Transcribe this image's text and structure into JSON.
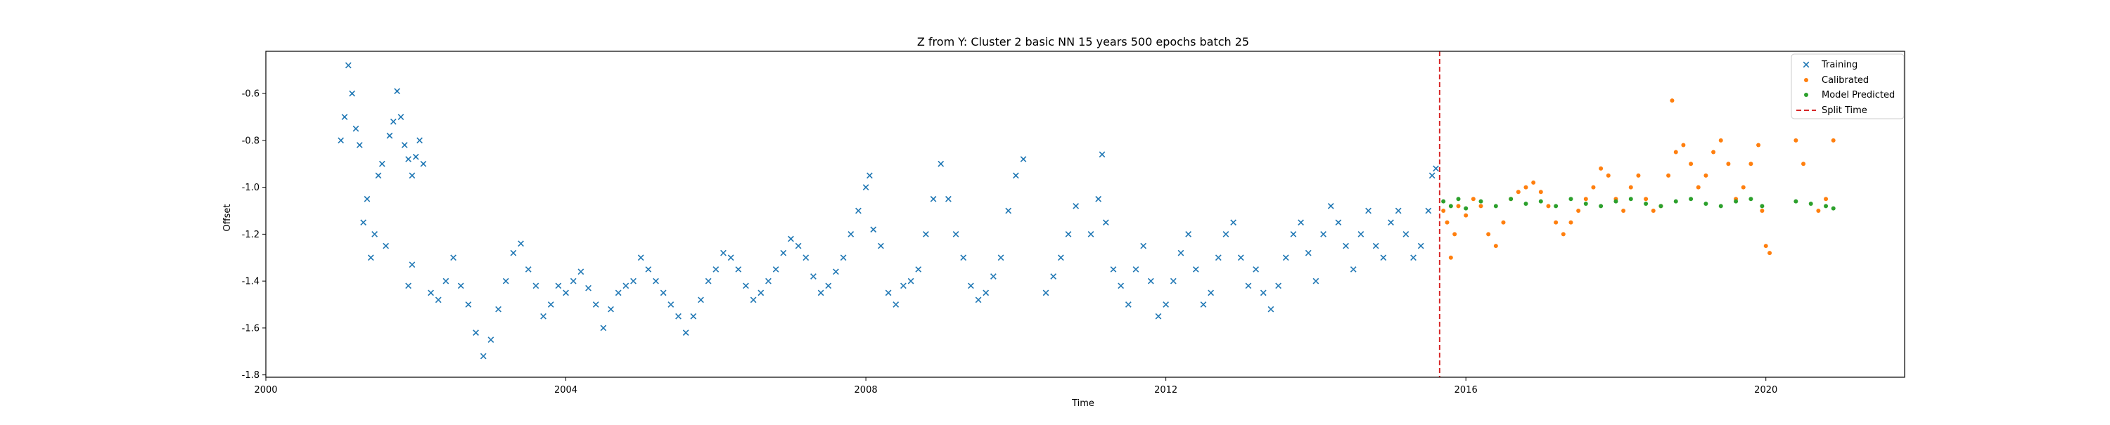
{
  "chart_data": {
    "type": "scatter",
    "title": "Z from Y: Cluster 2 basic NN 15 years 500 epochs batch 25",
    "xlabel": "Time",
    "ylabel": "Offset",
    "xlim": [
      2000.0,
      2021.85
    ],
    "ylim": [
      -1.81,
      -0.42
    ],
    "x_ticks": [
      2000,
      2004,
      2008,
      2012,
      2016,
      2020
    ],
    "x_tick_labels": [
      "2000",
      "2004",
      "2008",
      "2012",
      "2016",
      "2020"
    ],
    "y_ticks": [
      -1.8,
      -1.6,
      -1.4,
      -1.2,
      -1.0,
      -0.8,
      -0.6
    ],
    "y_tick_labels": [
      "-1.8",
      "-1.6",
      "-1.4",
      "-1.2",
      "-1.0",
      "-0.8",
      "-0.6"
    ],
    "grid": false,
    "legend_position": "top-right",
    "split_time": 2015.65,
    "series": [
      {
        "name": "Training",
        "marker": "x",
        "color": "#1f77b4",
        "points": [
          [
            2001.0,
            -0.8
          ],
          [
            2001.05,
            -0.7
          ],
          [
            2001.1,
            -0.48
          ],
          [
            2001.15,
            -0.6
          ],
          [
            2001.2,
            -0.75
          ],
          [
            2001.25,
            -0.82
          ],
          [
            2001.3,
            -1.15
          ],
          [
            2001.35,
            -1.05
          ],
          [
            2001.4,
            -1.3
          ],
          [
            2001.45,
            -1.2
          ],
          [
            2001.5,
            -0.95
          ],
          [
            2001.55,
            -0.9
          ],
          [
            2001.6,
            -1.25
          ],
          [
            2001.65,
            -0.78
          ],
          [
            2001.7,
            -0.72
          ],
          [
            2001.75,
            -0.59
          ],
          [
            2001.8,
            -0.7
          ],
          [
            2001.85,
            -0.82
          ],
          [
            2001.9,
            -0.88
          ],
          [
            2001.95,
            -0.95
          ],
          [
            2002.0,
            -0.87
          ],
          [
            2002.05,
            -0.8
          ],
          [
            2002.1,
            -0.9
          ],
          [
            2001.9,
            -1.42
          ],
          [
            2001.95,
            -1.33
          ],
          [
            2002.2,
            -1.45
          ],
          [
            2002.3,
            -1.48
          ],
          [
            2002.4,
            -1.4
          ],
          [
            2002.5,
            -1.3
          ],
          [
            2002.6,
            -1.42
          ],
          [
            2002.7,
            -1.5
          ],
          [
            2002.8,
            -1.62
          ],
          [
            2002.9,
            -1.72
          ],
          [
            2003.0,
            -1.65
          ],
          [
            2003.1,
            -1.52
          ],
          [
            2003.2,
            -1.4
          ],
          [
            2003.3,
            -1.28
          ],
          [
            2003.4,
            -1.24
          ],
          [
            2003.5,
            -1.35
          ],
          [
            2003.6,
            -1.42
          ],
          [
            2003.7,
            -1.55
          ],
          [
            2003.8,
            -1.5
          ],
          [
            2003.9,
            -1.42
          ],
          [
            2004.0,
            -1.45
          ],
          [
            2004.1,
            -1.4
          ],
          [
            2004.2,
            -1.36
          ],
          [
            2004.3,
            -1.43
          ],
          [
            2004.4,
            -1.5
          ],
          [
            2004.5,
            -1.6
          ],
          [
            2004.6,
            -1.52
          ],
          [
            2004.7,
            -1.45
          ],
          [
            2004.8,
            -1.42
          ],
          [
            2004.9,
            -1.4
          ],
          [
            2005.0,
            -1.3
          ],
          [
            2005.1,
            -1.35
          ],
          [
            2005.2,
            -1.4
          ],
          [
            2005.3,
            -1.45
          ],
          [
            2005.4,
            -1.5
          ],
          [
            2005.5,
            -1.55
          ],
          [
            2005.6,
            -1.62
          ],
          [
            2005.7,
            -1.55
          ],
          [
            2005.8,
            -1.48
          ],
          [
            2005.9,
            -1.4
          ],
          [
            2006.0,
            -1.35
          ],
          [
            2006.1,
            -1.28
          ],
          [
            2006.2,
            -1.3
          ],
          [
            2006.3,
            -1.35
          ],
          [
            2006.4,
            -1.42
          ],
          [
            2006.5,
            -1.48
          ],
          [
            2006.6,
            -1.45
          ],
          [
            2006.7,
            -1.4
          ],
          [
            2006.8,
            -1.35
          ],
          [
            2006.9,
            -1.28
          ],
          [
            2007.0,
            -1.22
          ],
          [
            2007.1,
            -1.25
          ],
          [
            2007.2,
            -1.3
          ],
          [
            2007.3,
            -1.38
          ],
          [
            2007.4,
            -1.45
          ],
          [
            2007.5,
            -1.42
          ],
          [
            2007.6,
            -1.36
          ],
          [
            2007.7,
            -1.3
          ],
          [
            2007.8,
            -1.2
          ],
          [
            2007.9,
            -1.1
          ],
          [
            2008.0,
            -1.0
          ],
          [
            2008.05,
            -0.95
          ],
          [
            2008.1,
            -1.18
          ],
          [
            2008.2,
            -1.25
          ],
          [
            2008.3,
            -1.45
          ],
          [
            2008.4,
            -1.5
          ],
          [
            2008.5,
            -1.42
          ],
          [
            2008.6,
            -1.4
          ],
          [
            2008.7,
            -1.35
          ],
          [
            2008.8,
            -1.2
          ],
          [
            2008.9,
            -1.05
          ],
          [
            2009.0,
            -0.9
          ],
          [
            2009.1,
            -1.05
          ],
          [
            2009.2,
            -1.2
          ],
          [
            2009.3,
            -1.3
          ],
          [
            2009.4,
            -1.42
          ],
          [
            2009.5,
            -1.48
          ],
          [
            2009.6,
            -1.45
          ],
          [
            2009.7,
            -1.38
          ],
          [
            2009.8,
            -1.3
          ],
          [
            2009.9,
            -1.1
          ],
          [
            2010.0,
            -0.95
          ],
          [
            2010.1,
            -0.88
          ],
          [
            2010.4,
            -1.45
          ],
          [
            2010.5,
            -1.38
          ],
          [
            2010.6,
            -1.3
          ],
          [
            2010.7,
            -1.2
          ],
          [
            2010.8,
            -1.08
          ],
          [
            2011.0,
            -1.2
          ],
          [
            2011.1,
            -1.05
          ],
          [
            2011.15,
            -0.86
          ],
          [
            2011.2,
            -1.15
          ],
          [
            2011.3,
            -1.35
          ],
          [
            2011.4,
            -1.42
          ],
          [
            2011.5,
            -1.5
          ],
          [
            2011.6,
            -1.35
          ],
          [
            2011.7,
            -1.25
          ],
          [
            2011.8,
            -1.4
          ],
          [
            2011.9,
            -1.55
          ],
          [
            2012.0,
            -1.5
          ],
          [
            2012.1,
            -1.4
          ],
          [
            2012.2,
            -1.28
          ],
          [
            2012.3,
            -1.2
          ],
          [
            2012.4,
            -1.35
          ],
          [
            2012.5,
            -1.5
          ],
          [
            2012.6,
            -1.45
          ],
          [
            2012.7,
            -1.3
          ],
          [
            2012.8,
            -1.2
          ],
          [
            2012.9,
            -1.15
          ],
          [
            2013.0,
            -1.3
          ],
          [
            2013.1,
            -1.42
          ],
          [
            2013.2,
            -1.35
          ],
          [
            2013.3,
            -1.45
          ],
          [
            2013.4,
            -1.52
          ],
          [
            2013.5,
            -1.42
          ],
          [
            2013.6,
            -1.3
          ],
          [
            2013.7,
            -1.2
          ],
          [
            2013.8,
            -1.15
          ],
          [
            2013.9,
            -1.28
          ],
          [
            2014.0,
            -1.4
          ],
          [
            2014.1,
            -1.2
          ],
          [
            2014.2,
            -1.08
          ],
          [
            2014.3,
            -1.15
          ],
          [
            2014.4,
            -1.25
          ],
          [
            2014.5,
            -1.35
          ],
          [
            2014.6,
            -1.2
          ],
          [
            2014.7,
            -1.1
          ],
          [
            2014.8,
            -1.25
          ],
          [
            2014.9,
            -1.3
          ],
          [
            2015.0,
            -1.15
          ],
          [
            2015.1,
            -1.1
          ],
          [
            2015.2,
            -1.2
          ],
          [
            2015.3,
            -1.3
          ],
          [
            2015.4,
            -1.25
          ],
          [
            2015.5,
            -1.1
          ],
          [
            2015.55,
            -0.95
          ],
          [
            2015.6,
            -0.92
          ]
        ]
      },
      {
        "name": "Calibrated",
        "marker": "dot",
        "color": "#ff7f0e",
        "points": [
          [
            2015.7,
            -1.1
          ],
          [
            2015.75,
            -1.15
          ],
          [
            2015.8,
            -1.3
          ],
          [
            2015.85,
            -1.2
          ],
          [
            2015.9,
            -1.08
          ],
          [
            2016.0,
            -1.12
          ],
          [
            2016.1,
            -1.05
          ],
          [
            2016.2,
            -1.08
          ],
          [
            2016.3,
            -1.2
          ],
          [
            2016.4,
            -1.25
          ],
          [
            2016.5,
            -1.15
          ],
          [
            2016.6,
            -1.05
          ],
          [
            2016.7,
            -1.02
          ],
          [
            2016.8,
            -1.0
          ],
          [
            2016.9,
            -0.98
          ],
          [
            2017.0,
            -1.02
          ],
          [
            2017.1,
            -1.08
          ],
          [
            2017.2,
            -1.15
          ],
          [
            2017.3,
            -1.2
          ],
          [
            2017.4,
            -1.15
          ],
          [
            2017.5,
            -1.1
          ],
          [
            2017.6,
            -1.05
          ],
          [
            2017.7,
            -1.0
          ],
          [
            2017.8,
            -0.92
          ],
          [
            2017.9,
            -0.95
          ],
          [
            2018.0,
            -1.05
          ],
          [
            2018.1,
            -1.1
          ],
          [
            2018.2,
            -1.0
          ],
          [
            2018.3,
            -0.95
          ],
          [
            2018.4,
            -1.05
          ],
          [
            2018.5,
            -1.1
          ],
          [
            2018.6,
            -1.08
          ],
          [
            2018.7,
            -0.95
          ],
          [
            2018.75,
            -0.63
          ],
          [
            2018.8,
            -0.85
          ],
          [
            2018.9,
            -0.82
          ],
          [
            2019.0,
            -0.9
          ],
          [
            2019.1,
            -1.0
          ],
          [
            2019.2,
            -0.95
          ],
          [
            2019.3,
            -0.85
          ],
          [
            2019.4,
            -0.8
          ],
          [
            2019.5,
            -0.9
          ],
          [
            2019.6,
            -1.05
          ],
          [
            2019.7,
            -1.0
          ],
          [
            2019.8,
            -0.9
          ],
          [
            2019.9,
            -0.82
          ],
          [
            2019.95,
            -1.1
          ],
          [
            2020.0,
            -1.25
          ],
          [
            2020.05,
            -1.28
          ],
          [
            2020.4,
            -0.8
          ],
          [
            2020.5,
            -0.9
          ],
          [
            2020.7,
            -1.1
          ],
          [
            2020.8,
            -1.05
          ],
          [
            2020.9,
            -0.8
          ]
        ]
      },
      {
        "name": "Model Predicted",
        "marker": "dot",
        "color": "#2ca02c",
        "points": [
          [
            2015.7,
            -1.06
          ],
          [
            2015.8,
            -1.08
          ],
          [
            2015.9,
            -1.05
          ],
          [
            2016.0,
            -1.09
          ],
          [
            2016.2,
            -1.06
          ],
          [
            2016.4,
            -1.08
          ],
          [
            2016.6,
            -1.05
          ],
          [
            2016.8,
            -1.07
          ],
          [
            2017.0,
            -1.06
          ],
          [
            2017.2,
            -1.08
          ],
          [
            2017.4,
            -1.05
          ],
          [
            2017.6,
            -1.07
          ],
          [
            2017.8,
            -1.08
          ],
          [
            2018.0,
            -1.06
          ],
          [
            2018.2,
            -1.05
          ],
          [
            2018.4,
            -1.07
          ],
          [
            2018.6,
            -1.08
          ],
          [
            2018.8,
            -1.06
          ],
          [
            2019.0,
            -1.05
          ],
          [
            2019.2,
            -1.07
          ],
          [
            2019.4,
            -1.08
          ],
          [
            2019.6,
            -1.06
          ],
          [
            2019.8,
            -1.05
          ],
          [
            2019.95,
            -1.08
          ],
          [
            2020.4,
            -1.06
          ],
          [
            2020.6,
            -1.07
          ],
          [
            2020.8,
            -1.08
          ],
          [
            2020.9,
            -1.09
          ]
        ]
      }
    ]
  },
  "legend": {
    "items": [
      {
        "label": "Training",
        "symbol": "x",
        "color": "#1f77b4"
      },
      {
        "label": "Calibrated",
        "symbol": "dot",
        "color": "#ff7f0e"
      },
      {
        "label": "Model Predicted",
        "symbol": "dot",
        "color": "#2ca02c"
      },
      {
        "label": "Split Time",
        "symbol": "dashed-line",
        "color": "#d62728"
      }
    ]
  }
}
